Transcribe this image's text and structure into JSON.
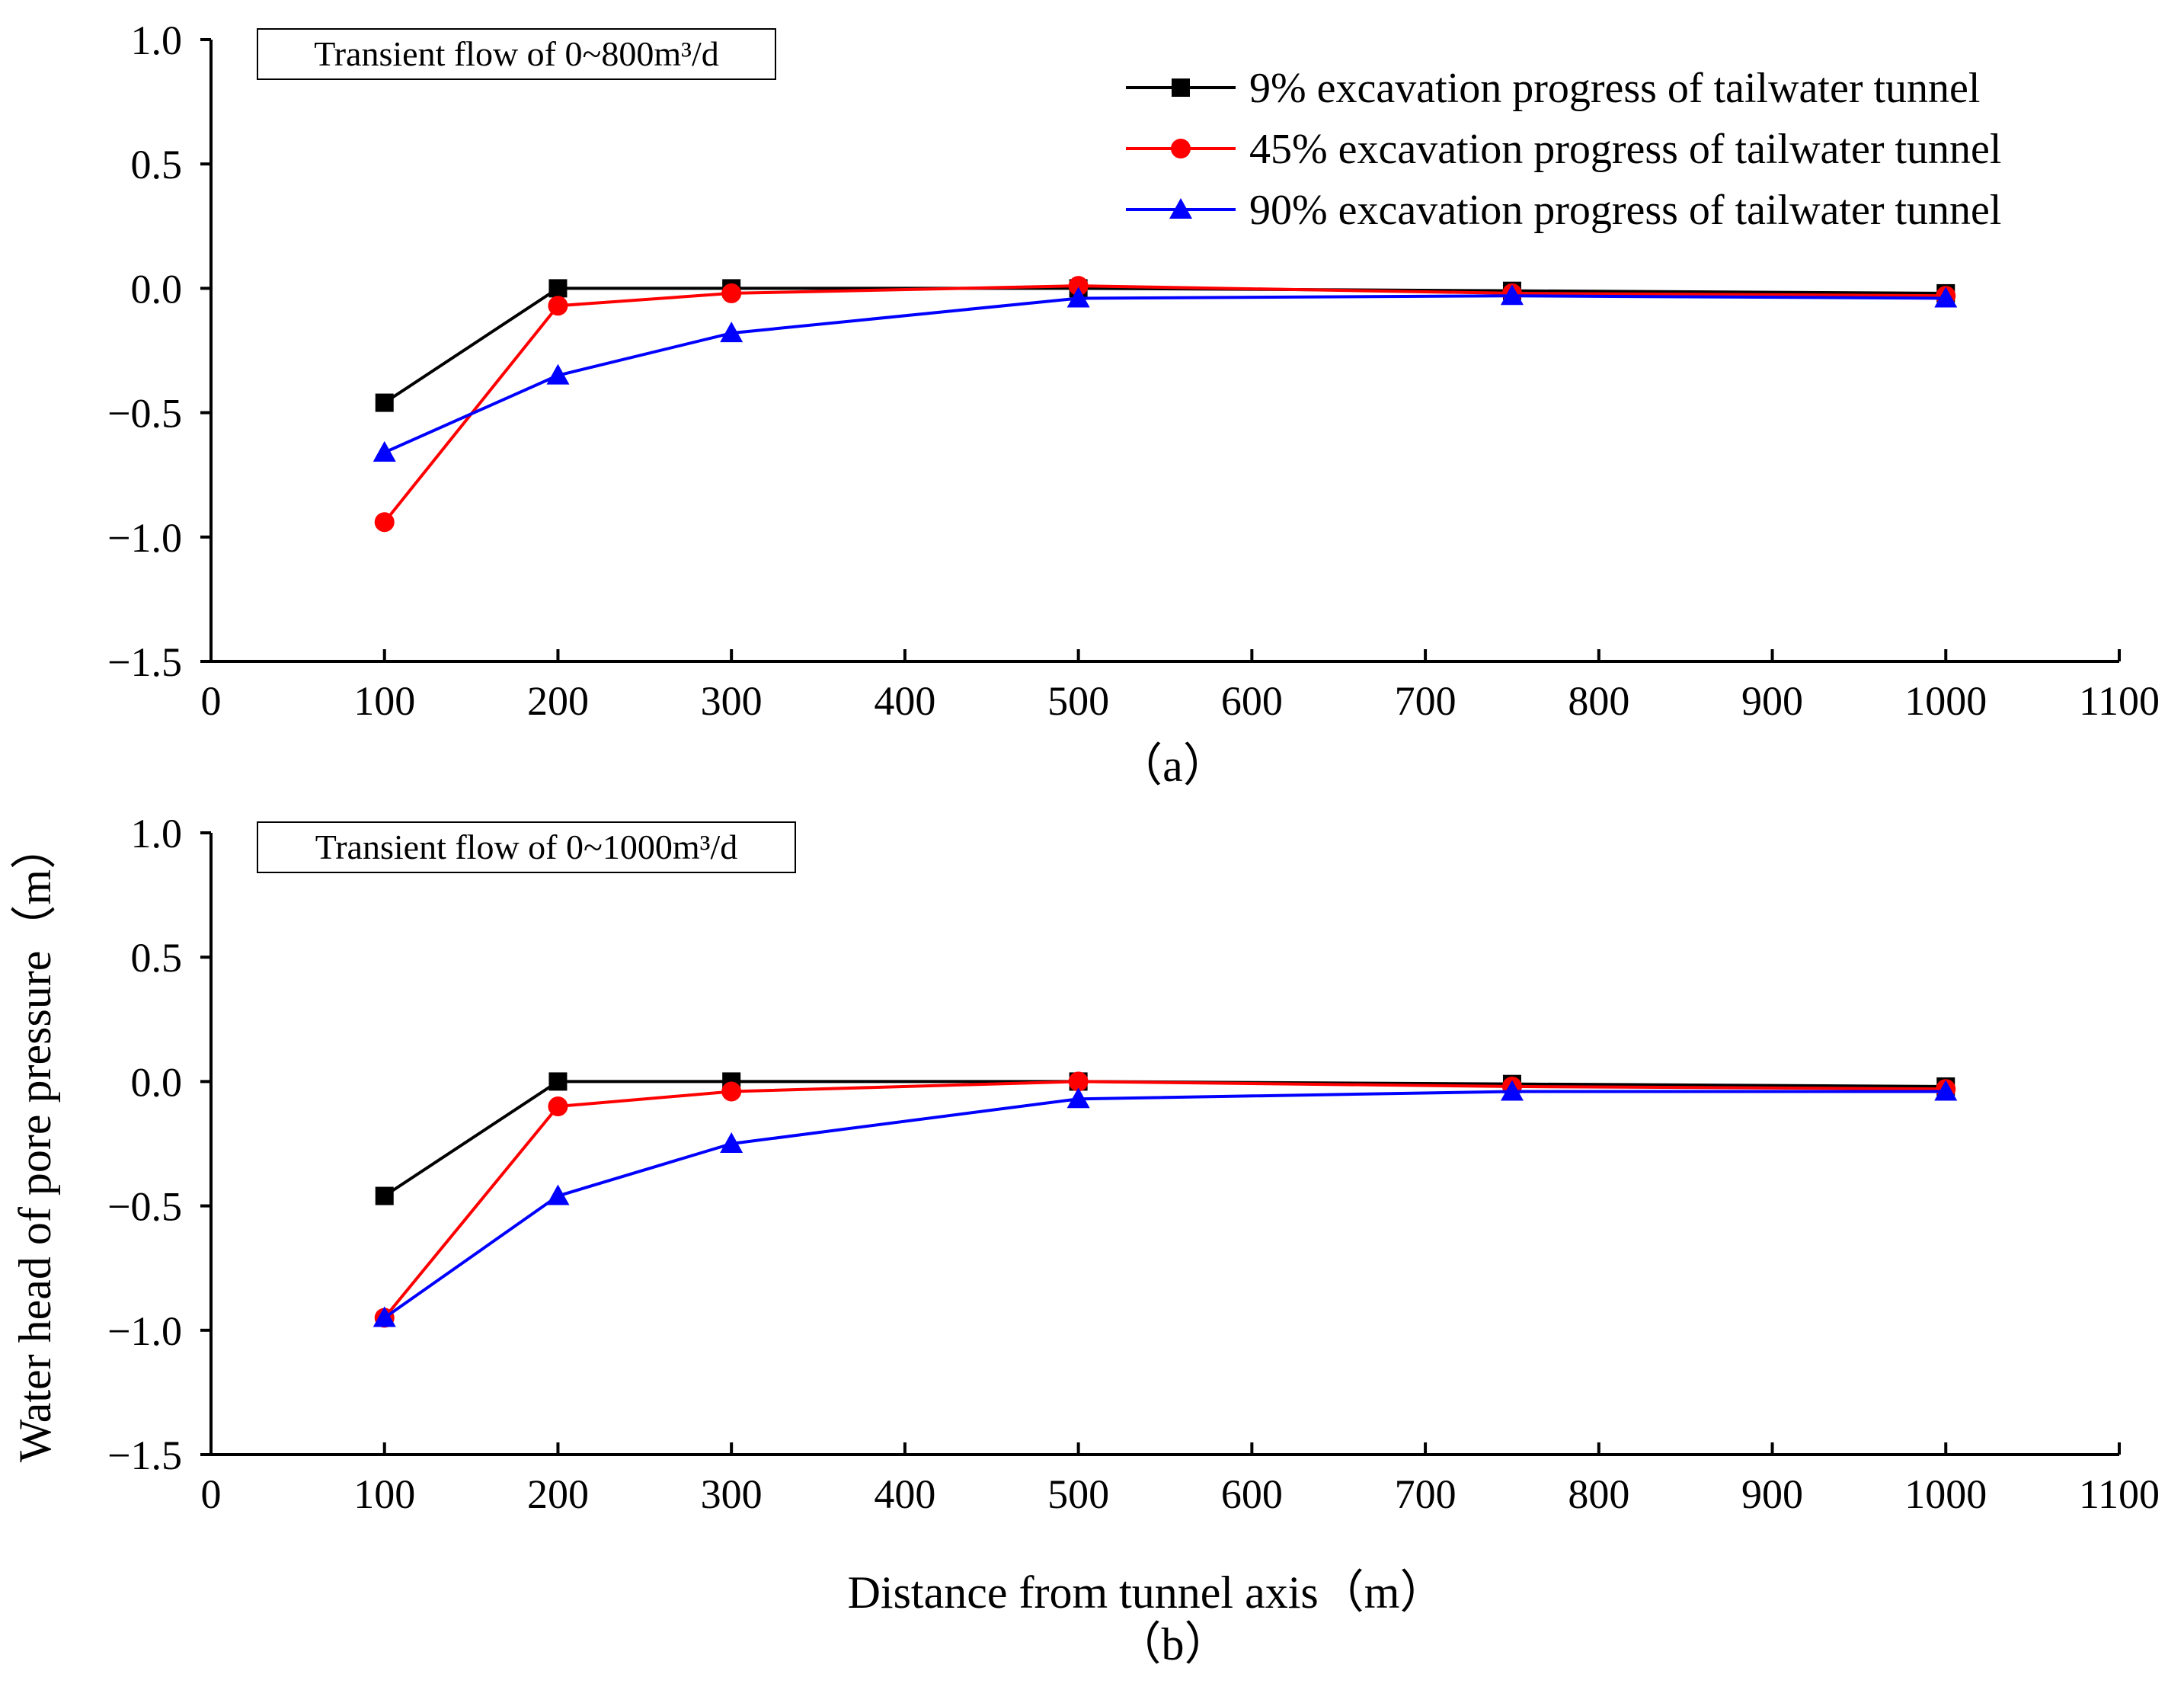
{
  "chart_data": [
    {
      "type": "line",
      "panel_label": "（a）",
      "annotation": "Transient flow of 0~800m³/d",
      "x": [
        100,
        200,
        300,
        500,
        750,
        1000
      ],
      "xlim": [
        0,
        1100
      ],
      "ylim": [
        -1.5,
        1.0
      ],
      "x_ticks": [
        "0",
        "100",
        "200",
        "300",
        "400",
        "500",
        "600",
        "700",
        "800",
        "900",
        "1000",
        "1100"
      ],
      "y_ticks": [
        "1.0",
        "0.5",
        "0.0",
        "−0.5",
        "−1.0",
        "−1.5"
      ],
      "series": [
        {
          "name": "9% excavation progress of tailwater tunnel",
          "color": "#000000",
          "marker": "square",
          "values": [
            -0.46,
            0.0,
            0.0,
            0.0,
            -0.01,
            -0.02
          ]
        },
        {
          "name": "45% excavation progress of tailwater tunnel",
          "color": "#ff0000",
          "marker": "circle",
          "values": [
            -0.94,
            -0.07,
            -0.02,
            0.01,
            -0.02,
            -0.03
          ]
        },
        {
          "name": "90% excavation progress of tailwater tunnel",
          "color": "#0000ff",
          "marker": "triangle",
          "values": [
            -0.66,
            -0.35,
            -0.18,
            -0.04,
            -0.03,
            -0.04
          ]
        }
      ]
    },
    {
      "type": "line",
      "panel_label": "（b）",
      "annotation": "Transient flow of 0~1000m³/d",
      "x": [
        100,
        200,
        300,
        500,
        750,
        1000
      ],
      "xlim": [
        0,
        1100
      ],
      "ylim": [
        -1.5,
        1.0
      ],
      "x_ticks": [
        "0",
        "100",
        "200",
        "300",
        "400",
        "500",
        "600",
        "700",
        "800",
        "900",
        "1000",
        "1100"
      ],
      "y_ticks": [
        "1.0",
        "0.5",
        "0.0",
        "−0.5",
        "−1.0",
        "−1.5"
      ],
      "series": [
        {
          "name": "9% excavation progress of tailwater tunnel",
          "color": "#000000",
          "marker": "square",
          "values": [
            -0.46,
            0.0,
            0.0,
            0.0,
            -0.01,
            -0.02
          ]
        },
        {
          "name": "45% excavation progress of tailwater tunnel",
          "color": "#ff0000",
          "marker": "circle",
          "values": [
            -0.95,
            -0.1,
            -0.04,
            0.0,
            -0.02,
            -0.03
          ]
        },
        {
          "name": "90% excavation progress of tailwater tunnel",
          "color": "#0000ff",
          "marker": "triangle",
          "values": [
            -0.95,
            -0.46,
            -0.25,
            -0.07,
            -0.04,
            -0.04
          ]
        }
      ]
    }
  ],
  "ylabel": "Water head of pore pressure（m）",
  "xlabel": "Distance from tunnel axis（m）"
}
